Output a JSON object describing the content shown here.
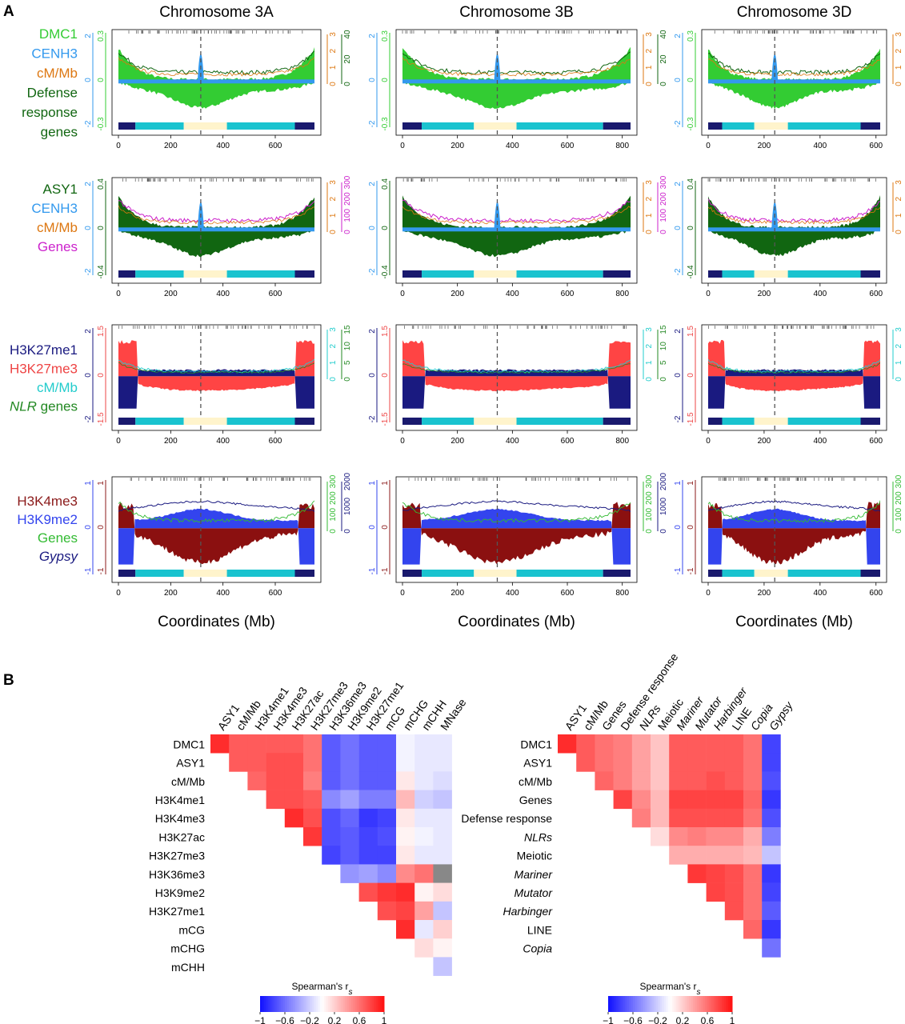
{
  "panel_a": {
    "letter": "A",
    "xlabel": "Coordinates (Mb)",
    "chromosomes": [
      {
        "title": "Chromosome 3A",
        "length": 750,
        "centromere": 315,
        "xticks": [
          0,
          200,
          400,
          600
        ],
        "bands": [
          [
            0,
            65,
            "#1a1a6e"
          ],
          [
            65,
            250,
            "#19c3cf"
          ],
          [
            250,
            415,
            "#fff4cc"
          ],
          [
            415,
            675,
            "#19c3cf"
          ],
          [
            675,
            750,
            "#1a1a6e"
          ]
        ]
      },
      {
        "title": "Chromosome 3B",
        "length": 830,
        "centromere": 345,
        "xticks": [
          0,
          200,
          400,
          600,
          800
        ],
        "bands": [
          [
            0,
            70,
            "#1a1a6e"
          ],
          [
            70,
            260,
            "#19c3cf"
          ],
          [
            260,
            415,
            "#fff4cc"
          ],
          [
            415,
            730,
            "#19c3cf"
          ],
          [
            730,
            830,
            "#1a1a6e"
          ]
        ]
      },
      {
        "title": "Chromosome 3D",
        "length": 615,
        "centromere": 238,
        "xticks": [
          0,
          200,
          400,
          600
        ],
        "bands": [
          [
            0,
            50,
            "#1a1a6e"
          ],
          [
            50,
            165,
            "#19c3cf"
          ],
          [
            165,
            285,
            "#fff4cc"
          ],
          [
            285,
            545,
            "#19c3cf"
          ],
          [
            545,
            615,
            "#1a1a6e"
          ]
        ]
      }
    ],
    "rows": [
      {
        "legend": [
          {
            "text": "DMC1",
            "color": "#33cc33",
            "italic": false
          },
          {
            "text": "CENH3",
            "color": "#3399ee",
            "italic": false
          },
          {
            "text": "cM/Mb",
            "color": "#dd7711",
            "italic": false
          },
          {
            "text": "Defense",
            "color": "#116611",
            "italic": false
          },
          {
            "text": "response",
            "color": "#116611",
            "italic": false
          },
          {
            "text": "genes",
            "color": "#116611",
            "italic": false
          }
        ],
        "left_inner": {
          "labels": [
            "0.3",
            "0",
            "-0.3"
          ],
          "color": "#33cc33"
        },
        "left_outer": {
          "labels": [
            "2",
            "0",
            "-2"
          ],
          "color": "#3399ee"
        },
        "right_inner": {
          "labels": [
            "0",
            "1",
            "2",
            "3"
          ],
          "color": "#dd7711"
        },
        "right_outer": {
          "labels": [
            "0",
            "20",
            "40"
          ],
          "color": "#116611"
        },
        "top_fill": "#33cc33",
        "bottom_fill": "#33cc33",
        "line1": "#116611",
        "line2": "#dd7711",
        "peak": "#3399ee"
      },
      {
        "legend": [
          {
            "text": "ASY1",
            "color": "#116611",
            "italic": false
          },
          {
            "text": "CENH3",
            "color": "#3399ee",
            "italic": false
          },
          {
            "text": "cM/Mb",
            "color": "#dd7711",
            "italic": false
          },
          {
            "text": "Genes",
            "color": "#cc22cc",
            "italic": false
          }
        ],
        "left_inner": {
          "labels": [
            "0.4",
            "0",
            "-0.4"
          ],
          "color": "#116611"
        },
        "left_outer": {
          "labels": [
            "2",
            "0",
            "-2"
          ],
          "color": "#3399ee"
        },
        "right_inner": {
          "labels": [
            "0",
            "1",
            "2",
            "3"
          ],
          "color": "#dd7711"
        },
        "right_outer": {
          "labels": [
            "0",
            "100",
            "200",
            "300"
          ],
          "color": "#cc22cc"
        },
        "top_fill": "#116611",
        "bottom_fill": "#116611",
        "line1": "#cc22cc",
        "line2": "#dd7711",
        "peak": "#3399ee"
      },
      {
        "legend": [
          {
            "text": "H3K27me1",
            "color": "#1a1a80",
            "italic": false
          },
          {
            "text": "H3K27me3",
            "color": "#ee4444",
            "italic": false
          },
          {
            "text": "cM/Mb",
            "color": "#22cccc",
            "italic": false
          },
          {
            "text": "NLR",
            "suffix": " genes",
            "color": "#228822",
            "italic": true
          }
        ],
        "left_inner": {
          "labels": [
            "1.5",
            "0",
            "-1.5"
          ],
          "color": "#ee4444"
        },
        "left_outer": {
          "labels": [
            "2",
            "0",
            "-2"
          ],
          "color": "#1a1a80"
        },
        "right_inner": {
          "labels": [
            "0",
            "1",
            "2",
            "3"
          ],
          "color": "#22cccc"
        },
        "right_outer": {
          "labels": [
            "0",
            "5",
            "10",
            "15"
          ],
          "color": "#228822"
        },
        "top_fill": "#1a1a80",
        "bottom_fill": "#ff4444",
        "line1": "#22cccc",
        "line2": "#228822",
        "peak": null
      },
      {
        "legend": [
          {
            "text": "H3K4me3",
            "color": "#8b1a1a",
            "italic": false
          },
          {
            "text": "H3K9me2",
            "color": "#3344ee",
            "italic": false
          },
          {
            "text": "Genes",
            "color": "#33bb33",
            "italic": false
          },
          {
            "text": "Gypsy",
            "color": "#1a1a80",
            "italic": true
          }
        ],
        "left_inner": {
          "labels": [
            "1",
            "0",
            "-1"
          ],
          "color": "#8b1a1a"
        },
        "left_outer": {
          "labels": [
            "1",
            "0",
            "-1"
          ],
          "color": "#3344ee"
        },
        "right_inner": {
          "labels": [
            "0",
            "100",
            "200",
            "300"
          ],
          "color": "#33bb33"
        },
        "right_outer": {
          "labels": [
            "0",
            "1000",
            "2000"
          ],
          "color": "#1a1a80"
        },
        "top_fill": "#3344ee",
        "bottom_fill": "#8b1010",
        "line1": "#1a1a80",
        "line2": "#33bb33",
        "peak": null
      }
    ]
  },
  "panel_b": {
    "letter": "B",
    "colorbar_title": "Spearman's r",
    "colorbar_sub": "s",
    "colorbar_ticks": [
      "−1",
      "−0.6",
      "−0.2",
      "0.2",
      "0.6",
      "1"
    ],
    "left": {
      "col_labels": [
        "ASY1",
        "cM/Mb",
        "H3K4me1",
        "H3K4me3",
        "H3K27ac",
        "H3K27me3",
        "H3K36me3",
        "H3K9me2",
        "H3K27me1",
        "mCG",
        "mCHG",
        "mCHH",
        "MNase"
      ],
      "col_italic": [
        false,
        false,
        false,
        false,
        false,
        false,
        false,
        false,
        false,
        false,
        false,
        false,
        false
      ],
      "row_labels": [
        "DMC1",
        "ASY1",
        "cM/Mb",
        "H3K4me1",
        "H3K4me3",
        "H3K27ac",
        "H3K27me3",
        "H3K36me3",
        "H3K9me2",
        "H3K27me1",
        "mCG",
        "mCHG",
        "mCHH"
      ],
      "row_italic": [
        false,
        false,
        false,
        false,
        false,
        false,
        false,
        false,
        false,
        false,
        false,
        false,
        false
      ],
      "matrix": [
        [
          0.9,
          0.7,
          0.7,
          0.7,
          0.7,
          0.6,
          -0.7,
          -0.6,
          -0.7,
          -0.7,
          -0.05,
          -0.1,
          -0.1
        ],
        [
          null,
          0.7,
          0.7,
          0.75,
          0.75,
          0.6,
          -0.7,
          -0.6,
          -0.7,
          -0.7,
          -0.05,
          -0.1,
          -0.1
        ],
        [
          null,
          null,
          0.65,
          0.75,
          0.75,
          0.55,
          -0.7,
          -0.6,
          -0.7,
          -0.7,
          0.1,
          -0.1,
          -0.15
        ],
        [
          null,
          null,
          null,
          0.75,
          0.75,
          0.7,
          -0.5,
          -0.4,
          -0.55,
          -0.55,
          0.3,
          -0.2,
          -0.25
        ],
        [
          null,
          null,
          null,
          null,
          0.9,
          0.75,
          -0.75,
          -0.65,
          -0.85,
          -0.8,
          0.1,
          -0.1,
          -0.1
        ],
        [
          null,
          null,
          null,
          null,
          null,
          0.85,
          -0.75,
          -0.7,
          -0.8,
          -0.75,
          0.05,
          -0.05,
          -0.1
        ],
        [
          null,
          null,
          null,
          null,
          null,
          null,
          -0.8,
          -0.7,
          -0.8,
          -0.8,
          0.1,
          -0.1,
          -0.1
        ],
        [
          null,
          null,
          null,
          null,
          null,
          null,
          null,
          -0.45,
          -0.4,
          -0.5,
          0.5,
          0.6,
          "gray"
        ],
        [
          null,
          null,
          null,
          null,
          null,
          null,
          null,
          null,
          0.75,
          0.85,
          0.9,
          0.05,
          0.15
        ],
        [
          null,
          null,
          null,
          null,
          null,
          null,
          null,
          null,
          null,
          0.75,
          0.8,
          0.4,
          -0.25
        ],
        [
          null,
          null,
          null,
          null,
          null,
          null,
          null,
          null,
          null,
          null,
          0.9,
          -0.1,
          0.2
        ],
        [
          null,
          null,
          null,
          null,
          null,
          null,
          null,
          null,
          null,
          null,
          null,
          0.15,
          0.05
        ],
        [
          null,
          null,
          null,
          null,
          null,
          null,
          null,
          null,
          null,
          null,
          null,
          null,
          -0.25
        ]
      ]
    },
    "right": {
      "col_labels": [
        "ASY1",
        "cM/Mb",
        "Genes",
        "Defense response",
        "NLRs",
        "Meiotic",
        "Mariner",
        "Mutator",
        "Harbinger",
        "LINE",
        "Copia",
        "Gypsy"
      ],
      "col_italic": [
        false,
        false,
        false,
        false,
        true,
        false,
        true,
        true,
        true,
        false,
        true,
        true
      ],
      "row_labels": [
        "DMC1",
        "ASY1",
        "cM/Mb",
        "Genes",
        "Defense response",
        "NLRs",
        "Meiotic",
        "Mariner",
        "Mutator",
        "Harbinger",
        "LINE",
        "Copia"
      ],
      "row_italic": [
        false,
        false,
        false,
        false,
        false,
        true,
        false,
        true,
        true,
        true,
        false,
        true
      ],
      "matrix": [
        [
          0.9,
          0.7,
          0.6,
          0.55,
          0.4,
          0.25,
          0.7,
          0.7,
          0.7,
          0.7,
          0.6,
          -0.8
        ],
        [
          null,
          0.7,
          0.6,
          0.55,
          0.4,
          0.25,
          0.7,
          0.7,
          0.7,
          0.7,
          0.6,
          -0.8
        ],
        [
          null,
          null,
          0.65,
          0.55,
          0.4,
          0.25,
          0.7,
          0.7,
          0.75,
          0.7,
          0.6,
          -0.75
        ],
        [
          null,
          null,
          null,
          0.8,
          0.5,
          0.3,
          0.8,
          0.8,
          0.8,
          0.8,
          0.65,
          -0.85
        ],
        [
          null,
          null,
          null,
          null,
          0.55,
          0.3,
          0.75,
          0.75,
          0.75,
          0.75,
          0.6,
          -0.75
        ],
        [
          null,
          null,
          null,
          null,
          null,
          0.15,
          0.5,
          0.55,
          0.5,
          0.5,
          0.35,
          -0.55
        ],
        [
          null,
          null,
          null,
          null,
          null,
          null,
          0.35,
          0.35,
          0.35,
          0.35,
          0.3,
          -0.25
        ],
        [
          null,
          null,
          null,
          null,
          null,
          null,
          null,
          0.85,
          0.8,
          0.75,
          0.6,
          -0.85
        ],
        [
          null,
          null,
          null,
          null,
          null,
          null,
          null,
          null,
          0.8,
          0.75,
          0.6,
          -0.8
        ],
        [
          null,
          null,
          null,
          null,
          null,
          null,
          null,
          null,
          null,
          0.75,
          0.6,
          -0.7
        ],
        [
          null,
          null,
          null,
          null,
          null,
          null,
          null,
          null,
          null,
          null,
          0.65,
          -0.85
        ],
        [
          null,
          null,
          null,
          null,
          null,
          null,
          null,
          null,
          null,
          null,
          null,
          -0.6
        ]
      ]
    }
  },
  "chart_data": [
    {
      "type": "area",
      "title": "Chromosome 3A",
      "xlabel": "Coordinates (Mb)",
      "xlim": [
        0,
        750
      ],
      "centromere_mb": 315,
      "series": [
        {
          "name": "DMC1"
        },
        {
          "name": "CENH3"
        },
        {
          "name": "cM/Mb"
        },
        {
          "name": "Defense response genes"
        },
        {
          "name": "ASY1"
        },
        {
          "name": "Genes"
        },
        {
          "name": "H3K27me1"
        },
        {
          "name": "H3K27me3"
        },
        {
          "name": "NLR genes"
        },
        {
          "name": "H3K4me3"
        },
        {
          "name": "H3K9me2"
        },
        {
          "name": "Gypsy"
        }
      ]
    },
    {
      "type": "area",
      "title": "Chromosome 3B",
      "xlabel": "Coordinates (Mb)",
      "xlim": [
        0,
        830
      ],
      "centromere_mb": 345
    },
    {
      "type": "area",
      "title": "Chromosome 3D",
      "xlabel": "Coordinates (Mb)",
      "xlim": [
        0,
        615
      ],
      "centromere_mb": 238
    },
    {
      "type": "heatmap",
      "title": "",
      "value_label": "Spearman's r_s",
      "range": [
        -1,
        1
      ]
    },
    {
      "type": "heatmap",
      "title": "",
      "value_label": "Spearman's r_s",
      "range": [
        -1,
        1
      ]
    }
  ]
}
